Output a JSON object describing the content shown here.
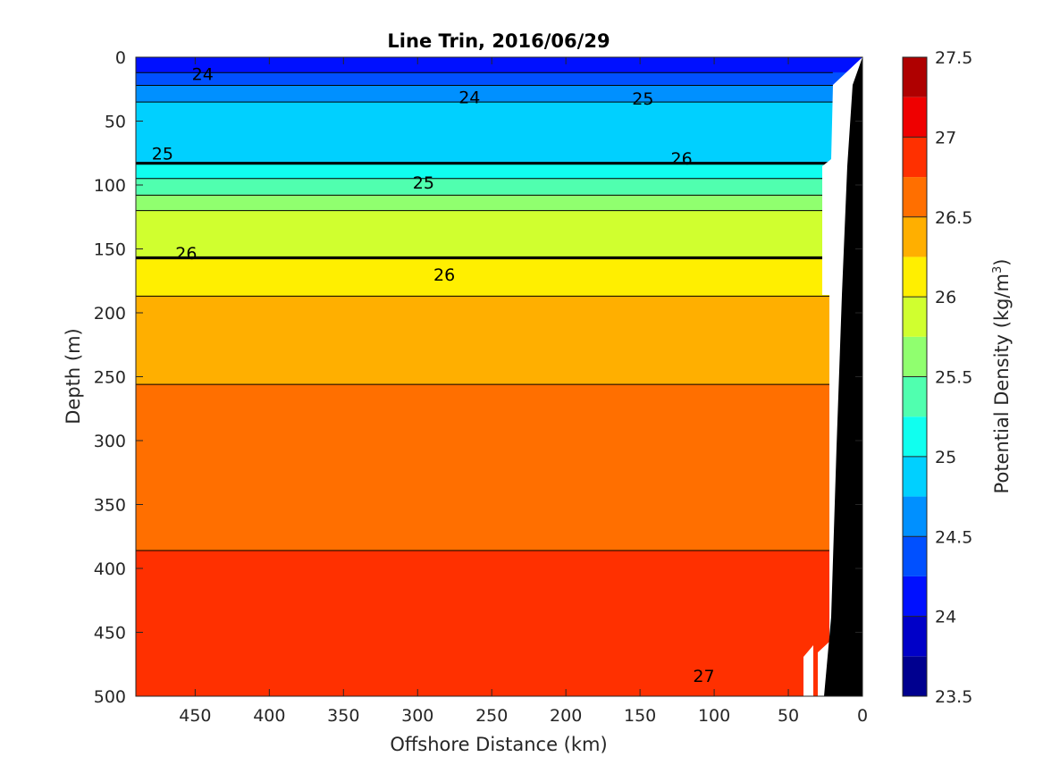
{
  "chart_data": {
    "type": "filled-contour",
    "title": "Line Trin, 2016/06/29",
    "xlabel": "Offshore Distance (km)",
    "ylabel": "Depth (m)",
    "colorbar_label": "Potential Density (kg/m",
    "colorbar_label_exponent": "3",
    "colorbar_label_close": ")",
    "xlim": [
      490,
      0
    ],
    "ylim": [
      0,
      500
    ],
    "x_reversed": true,
    "y_reversed": true,
    "x_ticks": [
      450,
      400,
      350,
      300,
      250,
      200,
      150,
      100,
      50,
      0
    ],
    "y_ticks": [
      0,
      50,
      100,
      150,
      200,
      250,
      300,
      350,
      400,
      450,
      500
    ],
    "colorbar_range": [
      23.5,
      27.5
    ],
    "colorbar_ticks": [
      23.5,
      24,
      24.5,
      25,
      25.5,
      26,
      26.5,
      27,
      27.5
    ],
    "contour_levels": [
      23.5,
      23.75,
      24.0,
      24.25,
      24.5,
      24.75,
      25.0,
      25.25,
      25.5,
      25.75,
      26.0,
      26.25,
      26.5,
      26.75,
      27.0,
      27.25,
      27.5
    ],
    "level_colors": [
      "#00008f",
      "#0000c8",
      "#0010ff",
      "#0050ff",
      "#0090ff",
      "#00d0ff",
      "#10ffef",
      "#50ffaf",
      "#90ff6f",
      "#d0ff2f",
      "#ffef00",
      "#ffaf00",
      "#ff6f00",
      "#ff3000",
      "#ef0000",
      "#af0000"
    ],
    "labeled_levels": [
      24,
      25,
      26,
      27
    ],
    "contour_labels": [
      {
        "text": "24",
        "x": 445,
        "y": 13
      },
      {
        "text": "24",
        "x": 265,
        "y": 31
      },
      {
        "text": "25",
        "x": 148,
        "y": 32
      },
      {
        "text": "25",
        "x": 472,
        "y": 75
      },
      {
        "text": "25",
        "x": 296,
        "y": 98
      },
      {
        "text": "26",
        "x": 122,
        "y": 79
      },
      {
        "text": "26",
        "x": 456,
        "y": 153
      },
      {
        "text": "26",
        "x": 282,
        "y": 170
      },
      {
        "text": "27",
        "x": 107,
        "y": 484
      }
    ],
    "field_description": "Isopycnals shoal toward the coast (x = 0); light surface water (~23.7) offshore, dense water (~27) below ~470 m near x = 90 km; black land mask near x = 0."
  }
}
